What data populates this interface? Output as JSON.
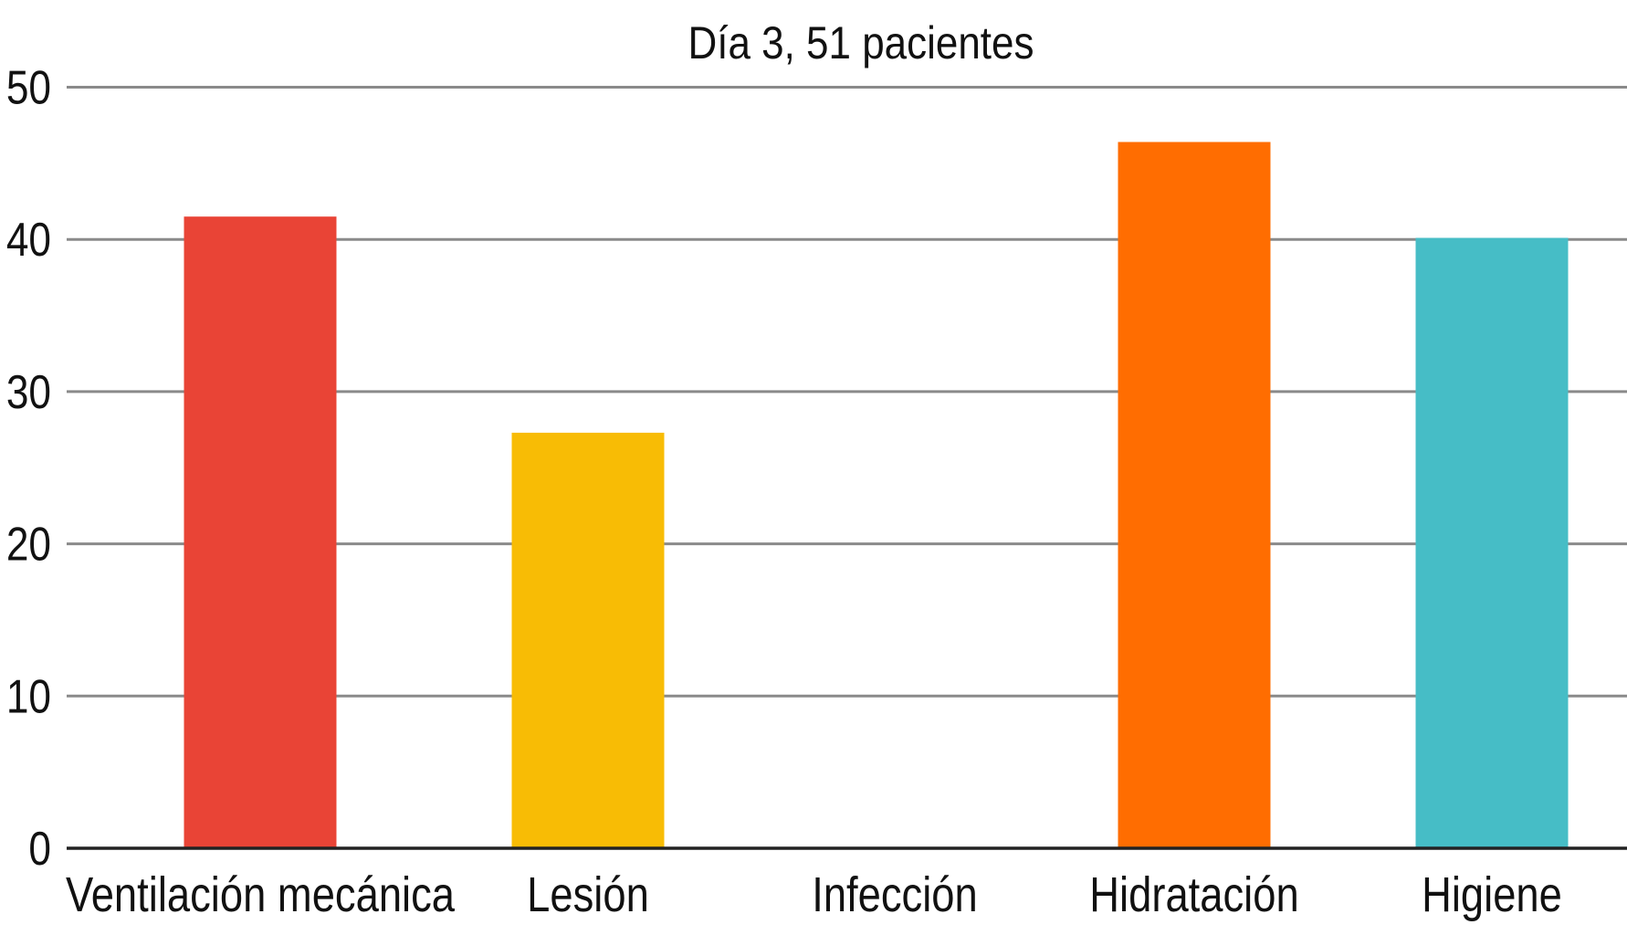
{
  "chart_data": {
    "type": "bar",
    "title": "Día 3, 51 pacientes",
    "xlabel": "",
    "ylabel": "",
    "categories": [
      "Ventilación mecánica",
      "Lesión",
      "Infección",
      "Hidratación",
      "Higiene"
    ],
    "values": [
      41.5,
      27.3,
      0,
      46.4,
      40.1
    ],
    "colors": [
      "#E94436",
      "#F8BC05",
      "#F3F3F3",
      "#FF6D01",
      "#46BDC6"
    ],
    "ylim": [
      0,
      50
    ],
    "yticks": [
      0,
      10,
      20,
      30,
      40,
      50
    ],
    "grid": true,
    "legend": "none"
  }
}
